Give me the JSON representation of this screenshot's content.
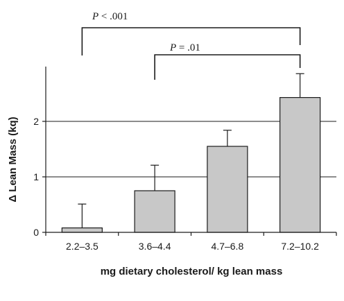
{
  "chart_data": {
    "type": "bar",
    "title": "",
    "xlabel": "mg dietary cholesterol/ kg lean mass",
    "ylabel": "Δ Lean Mass (kq)",
    "categories": [
      "2.2–3.5",
      "3.6–4.4",
      "4.7–6.8",
      "7.2–10.2"
    ],
    "values": [
      0.08,
      0.75,
      1.55,
      2.43
    ],
    "error_plus": [
      0.43,
      0.46,
      0.29,
      0.43
    ],
    "ylim": [
      0,
      3
    ],
    "yticks": [
      0,
      1,
      2
    ],
    "grid": "horizontal",
    "colors": {
      "bar_fill": "#c8c8c8",
      "bar_stroke": "#1a1a1a",
      "grid": "#1a1a1a"
    },
    "annotations": [
      {
        "label": "P < .001",
        "from_category": 0,
        "to_category": 3
      },
      {
        "label": "P = .01",
        "from_category": 1,
        "to_category": 3
      }
    ]
  }
}
